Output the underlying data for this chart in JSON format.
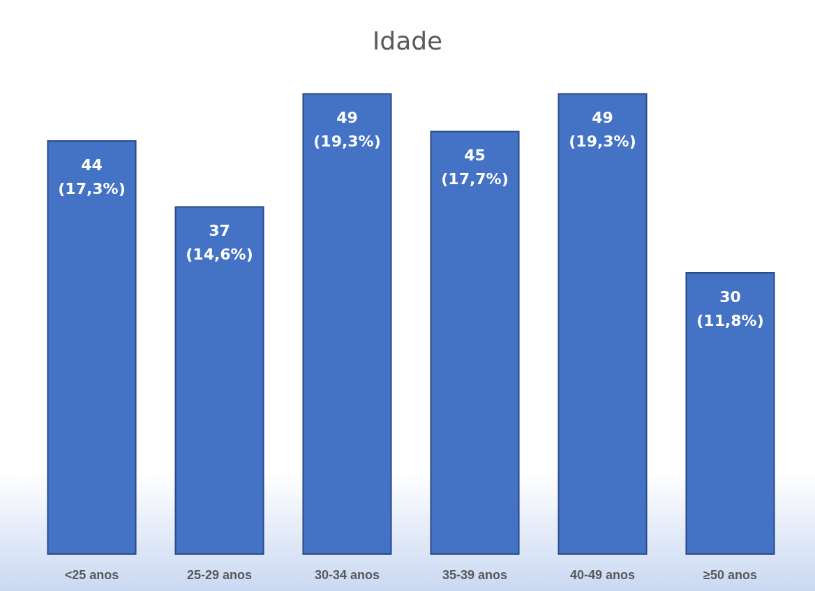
{
  "chart_data": {
    "type": "bar",
    "title": "Idade",
    "categories": [
      "<25 anos",
      "25-29 anos",
      "30-34 anos",
      "35-39 anos",
      "40-49 anos",
      "≥50 anos"
    ],
    "values": [
      44,
      37,
      49,
      45,
      49,
      30
    ],
    "value_labels": [
      "44\n(17,3%)",
      "37\n(14,6%)",
      "49\n(19,3%)",
      "45\n(17,7%)",
      "49\n(19,3%)",
      "30\n(11,8%)"
    ],
    "color": "#4472c4"
  }
}
